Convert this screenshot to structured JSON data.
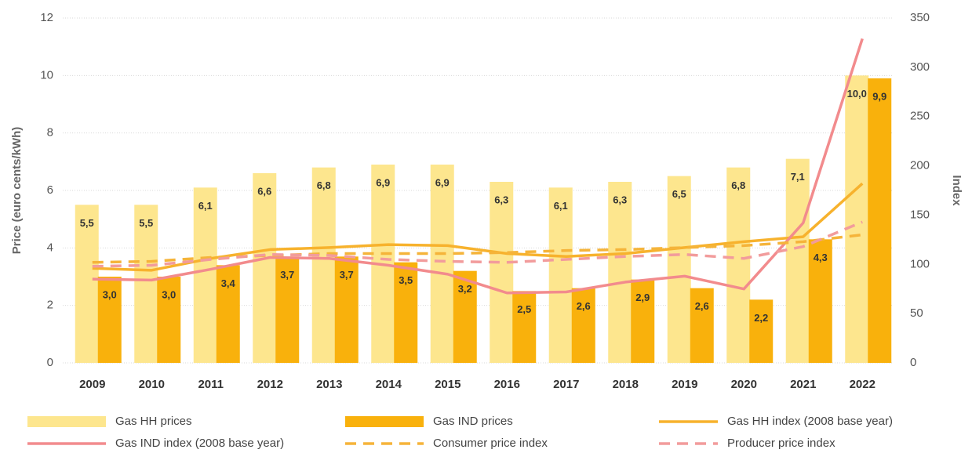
{
  "chart_data": {
    "type": "bar",
    "categories": [
      "2009",
      "2010",
      "2011",
      "2012",
      "2013",
      "2014",
      "2015",
      "2016",
      "2017",
      "2018",
      "2019",
      "2020",
      "2021",
      "2022"
    ],
    "ylabel": "Price (euro cents/kWh)",
    "y2label": "Index",
    "ylim": [
      0,
      12
    ],
    "yticks": [
      0,
      2,
      4,
      6,
      8,
      10,
      12
    ],
    "y2lim": [
      0,
      350
    ],
    "y2ticks": [
      0,
      50,
      100,
      150,
      200,
      250,
      300,
      350
    ],
    "grid": true,
    "legend": "bottom",
    "series": [
      {
        "name": "Gas HH prices",
        "type": "bar",
        "color": "#fde68e",
        "values": [
          5.5,
          5.5,
          6.1,
          6.6,
          6.8,
          6.9,
          6.9,
          6.3,
          6.1,
          6.3,
          6.5,
          6.8,
          7.1,
          10.0
        ],
        "value_labels": [
          "5,5",
          "5,5",
          "6,1",
          "6,6",
          "6,8",
          "6,9",
          "6,9",
          "6,3",
          "6,1",
          "6,3",
          "6,5",
          "6,8",
          "7,1",
          "10,0"
        ]
      },
      {
        "name": "Gas IND prices",
        "type": "bar",
        "color": "#f9b10c",
        "values": [
          3.0,
          3.0,
          3.4,
          3.7,
          3.7,
          3.5,
          3.2,
          2.5,
          2.6,
          2.9,
          2.6,
          2.2,
          4.3,
          9.9
        ],
        "value_labels": [
          "3,0",
          "3,0",
          "3,4",
          "3,7",
          "3,7",
          "3,5",
          "3,2",
          "2,5",
          "2,6",
          "2,9",
          "2,6",
          "2,2",
          "4,3",
          "9,9"
        ]
      },
      {
        "name": "Gas HH index (2008 base year)",
        "type": "line",
        "axis": "y2",
        "color": "#f7b22d",
        "line_style": "solid",
        "values": [
          96,
          94,
          106,
          115,
          117,
          120,
          119,
          111,
          108,
          111,
          117,
          123,
          128,
          182
        ]
      },
      {
        "name": "Gas IND index (2008 base year)",
        "type": "line",
        "axis": "y2",
        "color": "#f28b8d",
        "line_style": "solid",
        "values": [
          85,
          84,
          95,
          107,
          106,
          99,
          90,
          71,
          72,
          82,
          88,
          75,
          142,
          329
        ]
      },
      {
        "name": "Consumer price index",
        "type": "line",
        "axis": "y2",
        "color": "#f5b43a",
        "line_style": "dashed",
        "values": [
          102,
          103,
          107,
          109,
          111,
          111,
          111,
          112,
          114,
          115,
          117,
          119,
          123,
          130
        ]
      },
      {
        "name": "Producer price index",
        "type": "line",
        "axis": "y2",
        "color": "#f29c9c",
        "line_style": "dashed",
        "values": [
          98,
          99,
          105,
          110,
          109,
          105,
          103,
          102,
          105,
          108,
          110,
          106,
          118,
          143
        ]
      }
    ]
  }
}
